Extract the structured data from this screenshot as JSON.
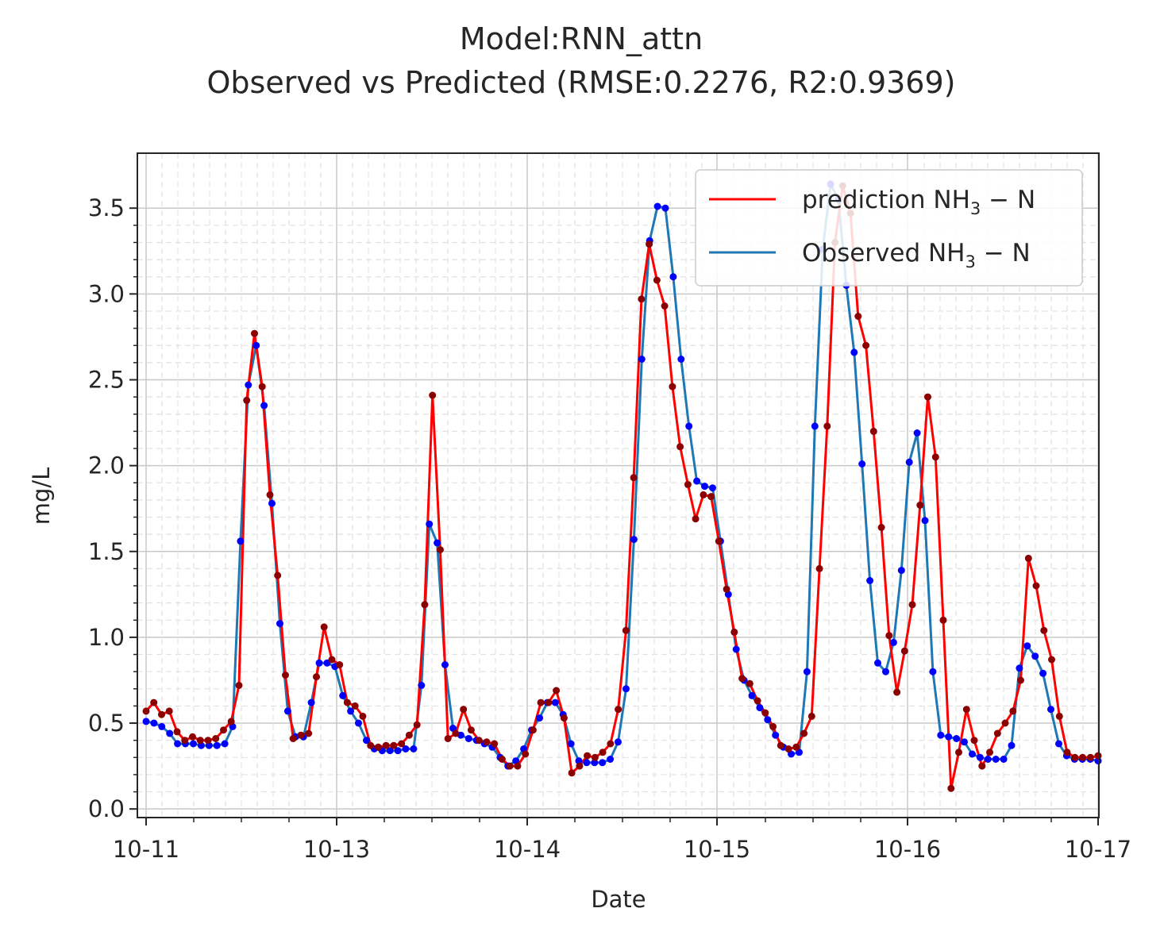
{
  "chart_data": {
    "type": "line",
    "title": "Model:RNN_attn",
    "subtitle": "Observed vs Predicted (RMSE:0.2276, R2:0.9369)",
    "xlabel": "Date",
    "ylabel": "mg/L",
    "ylim": [
      -0.05,
      3.82
    ],
    "yticks": [
      "0.0",
      "0.5",
      "1.0",
      "1.5",
      "2.0",
      "2.5",
      "3.0",
      "3.5"
    ],
    "xticks": [
      "10-11",
      "10-13",
      "10-14",
      "10-15",
      "10-16",
      "10-17"
    ],
    "grid": true,
    "legend_position": "upper-right",
    "legend": {
      "prediction_main": "prediction NH",
      "prediction_sub": "3",
      "prediction_tail": " − N",
      "observed_main": "Observed NH",
      "observed_sub": "3",
      "observed_tail": " − N"
    },
    "series": [
      {
        "name": "prediction NH3 − N",
        "color": "#ff0000",
        "marker_color": "#8b0000",
        "values": [
          0.57,
          0.62,
          0.55,
          0.57,
          0.45,
          0.4,
          0.42,
          0.4,
          0.4,
          0.41,
          0.46,
          0.51,
          0.72,
          2.38,
          2.77,
          2.46,
          1.83,
          1.36,
          0.78,
          0.41,
          0.43,
          0.44,
          0.77,
          1.06,
          0.87,
          0.84,
          0.62,
          0.6,
          0.54,
          0.37,
          0.36,
          0.37,
          0.37,
          0.38,
          0.43,
          0.49,
          1.19,
          2.41,
          1.51,
          0.41,
          0.44,
          0.58,
          0.46,
          0.4,
          0.39,
          0.38,
          0.29,
          0.25,
          0.25,
          0.32,
          0.46,
          0.62,
          0.62,
          0.69,
          0.53,
          0.21,
          0.25,
          0.31,
          0.3,
          0.33,
          0.38,
          0.58,
          1.04,
          1.93,
          2.97,
          3.29,
          3.08,
          2.93,
          2.46,
          2.11,
          1.89,
          1.69,
          1.83,
          1.82,
          1.56,
          1.28,
          1.03,
          0.76,
          0.73,
          0.63,
          0.56,
          0.48,
          0.37,
          0.35,
          0.36,
          0.44,
          0.54,
          1.4,
          2.23,
          3.3,
          3.63,
          3.47,
          2.87,
          2.7,
          2.2,
          1.64,
          1.01,
          0.68,
          0.92,
          1.19,
          1.77,
          2.4,
          2.05,
          1.1,
          0.12,
          0.33,
          0.58,
          0.4,
          0.25,
          0.33,
          0.44,
          0.5,
          0.57,
          0.75,
          1.46,
          1.3,
          1.04,
          0.87,
          0.54,
          0.33,
          0.3,
          0.3,
          0.3,
          0.31
        ]
      },
      {
        "name": "Observed NH3 − N",
        "color": "#1f77b4",
        "marker_color": "#0000ff",
        "values": [
          0.51,
          0.5,
          0.48,
          0.44,
          0.38,
          0.38,
          0.38,
          0.37,
          0.37,
          0.37,
          0.38,
          0.48,
          1.56,
          2.47,
          2.7,
          2.35,
          1.78,
          1.08,
          0.57,
          0.42,
          0.42,
          0.62,
          0.85,
          0.85,
          0.83,
          0.66,
          0.57,
          0.5,
          0.4,
          0.35,
          0.34,
          0.34,
          0.34,
          0.35,
          0.35,
          0.72,
          1.66,
          1.55,
          0.84,
          0.47,
          0.43,
          0.41,
          0.4,
          0.38,
          0.36,
          0.3,
          0.25,
          0.28,
          0.35,
          0.46,
          0.53,
          0.62,
          0.62,
          0.55,
          0.38,
          0.28,
          0.27,
          0.27,
          0.27,
          0.29,
          0.39,
          0.7,
          1.57,
          2.62,
          3.31,
          3.51,
          3.5,
          3.1,
          2.62,
          2.23,
          1.91,
          1.88,
          1.87,
          1.56,
          1.25,
          0.93,
          0.75,
          0.66,
          0.59,
          0.52,
          0.43,
          0.36,
          0.32,
          0.33,
          0.8,
          2.23,
          3.26,
          3.64,
          3.55,
          3.05,
          2.66,
          2.01,
          1.33,
          0.85,
          0.8,
          0.97,
          1.39,
          2.02,
          2.19,
          1.68,
          0.8,
          0.43,
          0.42,
          0.41,
          0.39,
          0.32,
          0.3,
          0.29,
          0.29,
          0.29,
          0.37,
          0.82,
          0.95,
          0.89,
          0.79,
          0.58,
          0.38,
          0.31,
          0.29,
          0.29,
          0.29,
          0.28
        ]
      }
    ]
  }
}
